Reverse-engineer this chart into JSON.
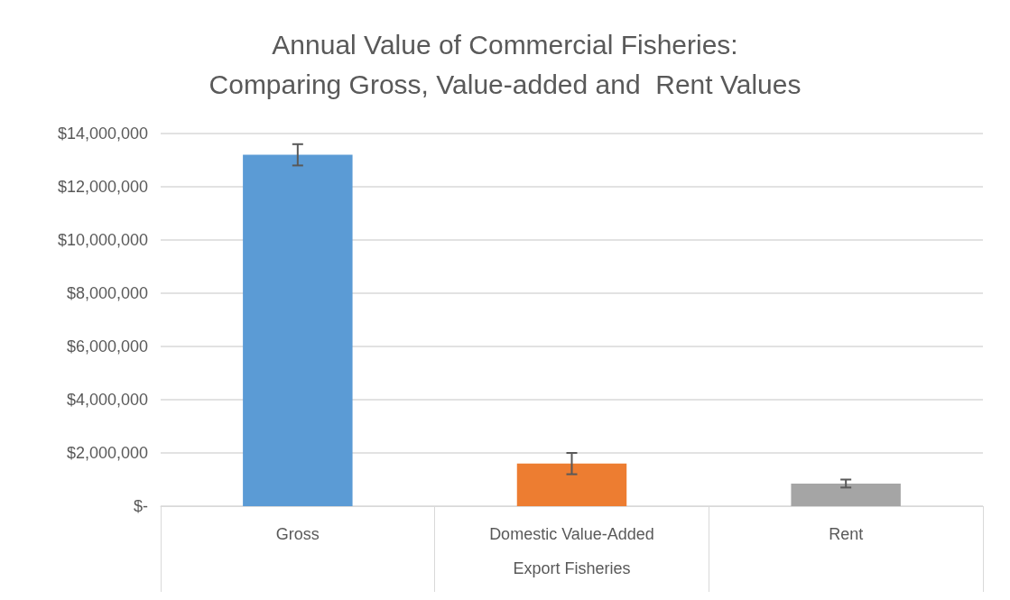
{
  "chart_data": {
    "type": "bar",
    "title": "Annual Value of Commercial Fisheries:\nComparing Gross, Value-added and  Rent Values",
    "xlabel": "Export Fisheries",
    "categories": [
      "Gross",
      "Domestic Value-Added",
      "Rent"
    ],
    "values": [
      13200000,
      1600000,
      850000
    ],
    "colors": [
      "#5b9bd5",
      "#ed7d31",
      "#a5a5a5"
    ],
    "errors": [
      400000,
      400000,
      150000
    ],
    "ylim": [
      0,
      14000000
    ],
    "yticks": [
      {
        "value": 0,
        "label": "$-"
      },
      {
        "value": 2000000,
        "label": "$2,000,000"
      },
      {
        "value": 4000000,
        "label": "$4,000,000"
      },
      {
        "value": 6000000,
        "label": "$6,000,000"
      },
      {
        "value": 8000000,
        "label": "$8,000,000"
      },
      {
        "value": 10000000,
        "label": "$10,000,000"
      },
      {
        "value": 12000000,
        "label": "$12,000,000"
      },
      {
        "value": 14000000,
        "label": "$14,000,000"
      }
    ],
    "grid": "y"
  }
}
